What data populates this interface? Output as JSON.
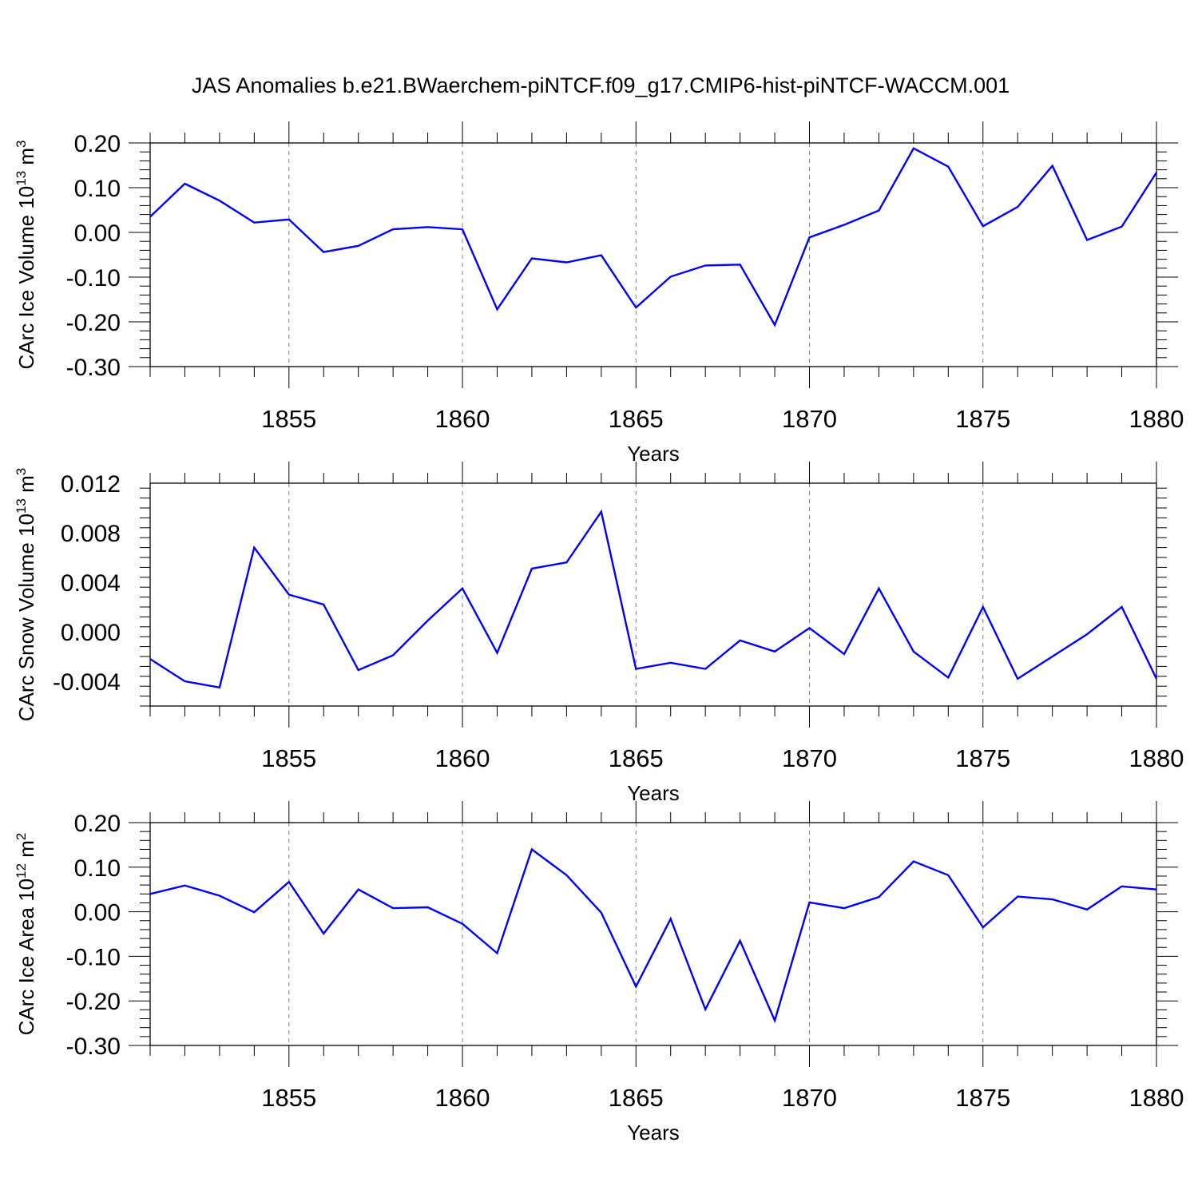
{
  "figure_title": "JAS Anomalies b.e21.BWaerchem-piNTCF.f09_g17.CMIP6-hist-piNTCF-WACCM.001",
  "colors": {
    "line": "#0000ff",
    "axis": "#000000",
    "gridline": "#808080"
  },
  "chart_data": [
    {
      "type": "line",
      "title": "JAS Anomalies b.e21.BWaerchem-piNTCF.f09_g17.CMIP6-hist-piNTCF-WACCM.001",
      "xlabel": "Years",
      "ylabel_main": "CArc Ice Volume 10",
      "ylabel_exp": "13",
      "ylabel_unit": " m",
      "ylabel_unit_exp": "3",
      "xlim": [
        1851,
        1880
      ],
      "ylim": [
        -0.3,
        0.2
      ],
      "x_ticks": [
        1855,
        1860,
        1865,
        1870,
        1875,
        1880
      ],
      "x_tick_labels": [
        "1855",
        "1860",
        "1865",
        "1870",
        "1875",
        "1880"
      ],
      "y_ticks": [
        -0.3,
        -0.2,
        -0.1,
        0.0,
        0.1,
        0.2
      ],
      "y_tick_labels": [
        "-0.30",
        "-0.20",
        "-0.10",
        "0.00",
        "0.10",
        "0.20"
      ],
      "grid": "vertical dashed at major x ticks",
      "x": [
        1851,
        1852,
        1853,
        1854,
        1855,
        1856,
        1857,
        1858,
        1859,
        1860,
        1861,
        1862,
        1863,
        1864,
        1865,
        1866,
        1867,
        1868,
        1869,
        1870,
        1871,
        1872,
        1873,
        1874,
        1875,
        1876,
        1877,
        1878,
        1879,
        1880
      ],
      "series": [
        {
          "name": "CArc Ice Volume",
          "values": [
            0.035,
            0.109,
            0.071,
            0.022,
            0.029,
            -0.044,
            -0.03,
            0.007,
            0.012,
            0.007,
            -0.172,
            -0.058,
            -0.067,
            -0.051,
            -0.168,
            -0.099,
            -0.074,
            -0.072,
            -0.207,
            -0.011,
            0.017,
            0.049,
            0.188,
            0.147,
            0.014,
            0.057,
            0.149,
            -0.017,
            0.013,
            0.134
          ]
        }
      ]
    },
    {
      "type": "line",
      "xlabel": "Years",
      "ylabel_main": "CArc Snow Volume 10",
      "ylabel_exp": "13",
      "ylabel_unit": " m",
      "ylabel_unit_exp": "3",
      "xlim": [
        1851,
        1880
      ],
      "ylim": [
        -0.006,
        0.012
      ],
      "x_ticks": [
        1855,
        1860,
        1865,
        1870,
        1875,
        1880
      ],
      "x_tick_labels": [
        "1855",
        "1860",
        "1865",
        "1870",
        "1875",
        "1880"
      ],
      "y_ticks": [
        -0.004,
        0.0,
        0.004,
        0.008,
        0.012
      ],
      "y_tick_labels": [
        "-0.004",
        "0.000",
        "0.004",
        "0.008",
        "0.012"
      ],
      "grid": "vertical dashed at major x ticks",
      "x": [
        1851,
        1852,
        1853,
        1854,
        1855,
        1856,
        1857,
        1858,
        1859,
        1860,
        1861,
        1862,
        1863,
        1864,
        1865,
        1866,
        1867,
        1868,
        1869,
        1870,
        1871,
        1872,
        1873,
        1874,
        1875,
        1876,
        1877,
        1878,
        1879,
        1880
      ],
      "series": [
        {
          "name": "CArc Snow Volume",
          "values": [
            -0.0022,
            -0.004,
            -0.0045,
            0.0068,
            0.003,
            0.0022,
            -0.0031,
            -0.0019,
            0.0009,
            0.0035,
            -0.0017,
            0.0051,
            0.0056,
            0.0097,
            -0.003,
            -0.0025,
            -0.003,
            -0.0007,
            -0.0016,
            0.0003,
            -0.0018,
            0.0035,
            -0.0016,
            -0.0037,
            0.002,
            -0.0038,
            -0.002,
            -0.0002,
            0.002,
            -0.0038
          ]
        }
      ]
    },
    {
      "type": "line",
      "xlabel": "Years",
      "ylabel_main": "CArc Ice Area 10",
      "ylabel_exp": "12",
      "ylabel_unit": " m",
      "ylabel_unit_exp": "2",
      "xlim": [
        1851,
        1880
      ],
      "ylim": [
        -0.3,
        0.2
      ],
      "x_ticks": [
        1855,
        1860,
        1865,
        1870,
        1875,
        1880
      ],
      "x_tick_labels": [
        "1855",
        "1860",
        "1865",
        "1870",
        "1875",
        "1880"
      ],
      "y_ticks": [
        -0.3,
        -0.2,
        -0.1,
        0.0,
        0.1,
        0.2
      ],
      "y_tick_labels": [
        "-0.30",
        "-0.20",
        "-0.10",
        "0.00",
        "0.10",
        "0.20"
      ],
      "grid": "vertical dashed at major x ticks",
      "x": [
        1851,
        1852,
        1853,
        1854,
        1855,
        1856,
        1857,
        1858,
        1859,
        1860,
        1861,
        1862,
        1863,
        1864,
        1865,
        1866,
        1867,
        1868,
        1869,
        1870,
        1871,
        1872,
        1873,
        1874,
        1875,
        1876,
        1877,
        1878,
        1879,
        1880
      ],
      "series": [
        {
          "name": "CArc Ice Area",
          "values": [
            0.04,
            0.059,
            0.036,
            -0.001,
            0.067,
            -0.049,
            0.05,
            0.008,
            0.01,
            -0.027,
            -0.093,
            0.14,
            0.082,
            -0.002,
            -0.168,
            -0.016,
            -0.219,
            -0.065,
            -0.244,
            0.021,
            0.008,
            0.033,
            0.113,
            0.082,
            -0.035,
            0.034,
            0.028,
            0.005,
            0.057,
            0.05
          ]
        }
      ]
    }
  ]
}
